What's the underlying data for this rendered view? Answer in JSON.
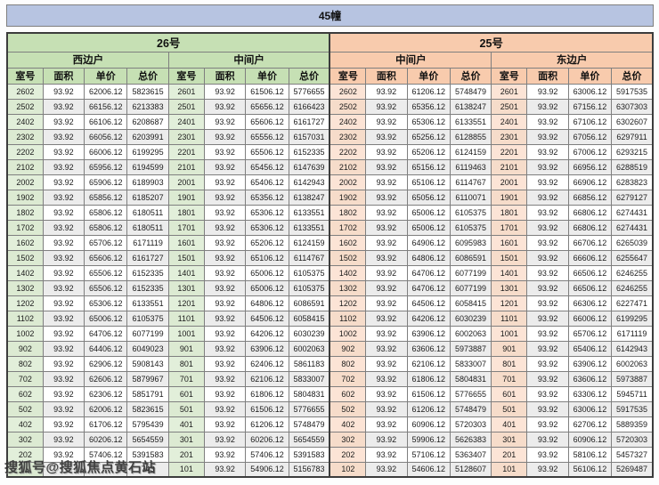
{
  "page": {
    "title": "45幢"
  },
  "watermark": {
    "text": "搜狐号@搜狐焦点黄石站"
  },
  "colors": {
    "title_bar": "#b7c4e1",
    "green_header": "#c6e0b4",
    "green_room_cell": "#e2efda",
    "orange_header": "#f8cbad",
    "orange_room_cell": "#fce4d6",
    "row_stripe": "#ececec",
    "border": "#7f7f7f"
  },
  "table": {
    "sections": [
      {
        "label": "26号"
      },
      {
        "label": "25号"
      }
    ],
    "unit_groups": [
      {
        "label": "西边户"
      },
      {
        "label": "中间户"
      },
      {
        "label": "中间户"
      },
      {
        "label": "东边户"
      }
    ],
    "columns": [
      "室号",
      "面积",
      "单价",
      "总价"
    ],
    "rows": [
      [
        "2602",
        "93.92",
        "62006.12",
        "5823615",
        "2601",
        "93.92",
        "61506.12",
        "5776655",
        "2602",
        "93.92",
        "61206.12",
        "5748479",
        "2601",
        "93.92",
        "63006.12",
        "5917535"
      ],
      [
        "2502",
        "93.92",
        "66156.12",
        "6213383",
        "2501",
        "93.92",
        "65656.12",
        "6166423",
        "2502",
        "93.92",
        "65356.12",
        "6138247",
        "2501",
        "93.92",
        "67156.12",
        "6307303"
      ],
      [
        "2402",
        "93.92",
        "66106.12",
        "6208687",
        "2401",
        "93.92",
        "65606.12",
        "6161727",
        "2402",
        "93.92",
        "65306.12",
        "6133551",
        "2401",
        "93.92",
        "67106.12",
        "6302607"
      ],
      [
        "2302",
        "93.92",
        "66056.12",
        "6203991",
        "2301",
        "93.92",
        "65556.12",
        "6157031",
        "2302",
        "93.92",
        "65256.12",
        "6128855",
        "2301",
        "93.92",
        "67056.12",
        "6297911"
      ],
      [
        "2202",
        "93.92",
        "66006.12",
        "6199295",
        "2201",
        "93.92",
        "65506.12",
        "6152335",
        "2202",
        "93.92",
        "65206.12",
        "6124159",
        "2201",
        "93.92",
        "67006.12",
        "6293215"
      ],
      [
        "2102",
        "93.92",
        "65956.12",
        "6194599",
        "2101",
        "93.92",
        "65456.12",
        "6147639",
        "2102",
        "93.92",
        "65156.12",
        "6119463",
        "2101",
        "93.92",
        "66956.12",
        "6288519"
      ],
      [
        "2002",
        "93.92",
        "65906.12",
        "6189903",
        "2001",
        "93.92",
        "65406.12",
        "6142943",
        "2002",
        "93.92",
        "65106.12",
        "6114767",
        "2001",
        "93.92",
        "66906.12",
        "6283823"
      ],
      [
        "1902",
        "93.92",
        "65856.12",
        "6185207",
        "1901",
        "93.92",
        "65356.12",
        "6138247",
        "1902",
        "93.92",
        "65056.12",
        "6110071",
        "1901",
        "93.92",
        "66856.12",
        "6279127"
      ],
      [
        "1802",
        "93.92",
        "65806.12",
        "6180511",
        "1801",
        "93.92",
        "65306.12",
        "6133551",
        "1802",
        "93.92",
        "65006.12",
        "6105375",
        "1801",
        "93.92",
        "66806.12",
        "6274431"
      ],
      [
        "1702",
        "93.92",
        "65806.12",
        "6180511",
        "1701",
        "93.92",
        "65306.12",
        "6133551",
        "1702",
        "93.92",
        "65006.12",
        "6105375",
        "1701",
        "93.92",
        "66806.12",
        "6274431"
      ],
      [
        "1602",
        "93.92",
        "65706.12",
        "6171119",
        "1601",
        "93.92",
        "65206.12",
        "6124159",
        "1602",
        "93.92",
        "64906.12",
        "6095983",
        "1601",
        "93.92",
        "66706.12",
        "6265039"
      ],
      [
        "1502",
        "93.92",
        "65606.12",
        "6161727",
        "1501",
        "93.92",
        "65106.12",
        "6114767",
        "1502",
        "93.92",
        "64806.12",
        "6086591",
        "1501",
        "93.92",
        "66606.12",
        "6255647"
      ],
      [
        "1402",
        "93.92",
        "65506.12",
        "6152335",
        "1401",
        "93.92",
        "65006.12",
        "6105375",
        "1402",
        "93.92",
        "64706.12",
        "6077199",
        "1401",
        "93.92",
        "66506.12",
        "6246255"
      ],
      [
        "1302",
        "93.92",
        "65506.12",
        "6152335",
        "1301",
        "93.92",
        "65006.12",
        "6105375",
        "1302",
        "93.92",
        "64706.12",
        "6077199",
        "1301",
        "93.92",
        "66506.12",
        "6246255"
      ],
      [
        "1202",
        "93.92",
        "65306.12",
        "6133551",
        "1201",
        "93.92",
        "64806.12",
        "6086591",
        "1202",
        "93.92",
        "64506.12",
        "6058415",
        "1201",
        "93.92",
        "66306.12",
        "6227471"
      ],
      [
        "1102",
        "93.92",
        "65006.12",
        "6105375",
        "1101",
        "93.92",
        "64506.12",
        "6058415",
        "1102",
        "93.92",
        "64206.12",
        "6030239",
        "1101",
        "93.92",
        "66006.12",
        "6199295"
      ],
      [
        "1002",
        "93.92",
        "64706.12",
        "6077199",
        "1001",
        "93.92",
        "64206.12",
        "6030239",
        "1002",
        "93.92",
        "63906.12",
        "6002063",
        "1001",
        "93.92",
        "65706.12",
        "6171119"
      ],
      [
        "902",
        "93.92",
        "64406.12",
        "6049023",
        "901",
        "93.92",
        "63906.12",
        "6002063",
        "902",
        "93.92",
        "63606.12",
        "5973887",
        "901",
        "93.92",
        "65406.12",
        "6142943"
      ],
      [
        "802",
        "93.92",
        "62906.12",
        "5908143",
        "801",
        "93.92",
        "62406.12",
        "5861183",
        "802",
        "93.92",
        "62106.12",
        "5833007",
        "801",
        "93.92",
        "63906.12",
        "6002063"
      ],
      [
        "702",
        "93.92",
        "62606.12",
        "5879967",
        "701",
        "93.92",
        "62106.12",
        "5833007",
        "702",
        "93.92",
        "61806.12",
        "5804831",
        "701",
        "93.92",
        "63606.12",
        "5973887"
      ],
      [
        "602",
        "93.92",
        "62306.12",
        "5851791",
        "601",
        "93.92",
        "61806.12",
        "5804831",
        "602",
        "93.92",
        "61506.12",
        "5776655",
        "601",
        "93.92",
        "63306.12",
        "5945711"
      ],
      [
        "502",
        "93.92",
        "62006.12",
        "5823615",
        "501",
        "93.92",
        "61506.12",
        "5776655",
        "502",
        "93.92",
        "61206.12",
        "5748479",
        "501",
        "93.92",
        "63006.12",
        "5917535"
      ],
      [
        "402",
        "93.92",
        "61706.12",
        "5795439",
        "401",
        "93.92",
        "61206.12",
        "5748479",
        "402",
        "93.92",
        "60906.12",
        "5720303",
        "401",
        "93.92",
        "62706.12",
        "5889359"
      ],
      [
        "302",
        "93.92",
        "60206.12",
        "5654559",
        "301",
        "93.92",
        "60206.12",
        "5654559",
        "302",
        "93.92",
        "59906.12",
        "5626383",
        "301",
        "93.92",
        "60906.12",
        "5720303"
      ],
      [
        "202",
        "93.92",
        "57406.12",
        "5391583",
        "201",
        "93.92",
        "57406.12",
        "5391583",
        "202",
        "93.92",
        "57106.12",
        "5363407",
        "201",
        "93.92",
        "58106.12",
        "5457327"
      ],
      [
        "",
        "",
        "",
        "743",
        "101",
        "93.92",
        "54906.12",
        "5156783",
        "102",
        "93.92",
        "54606.12",
        "5128607",
        "101",
        "93.92",
        "56106.12",
        "5269487"
      ]
    ]
  }
}
